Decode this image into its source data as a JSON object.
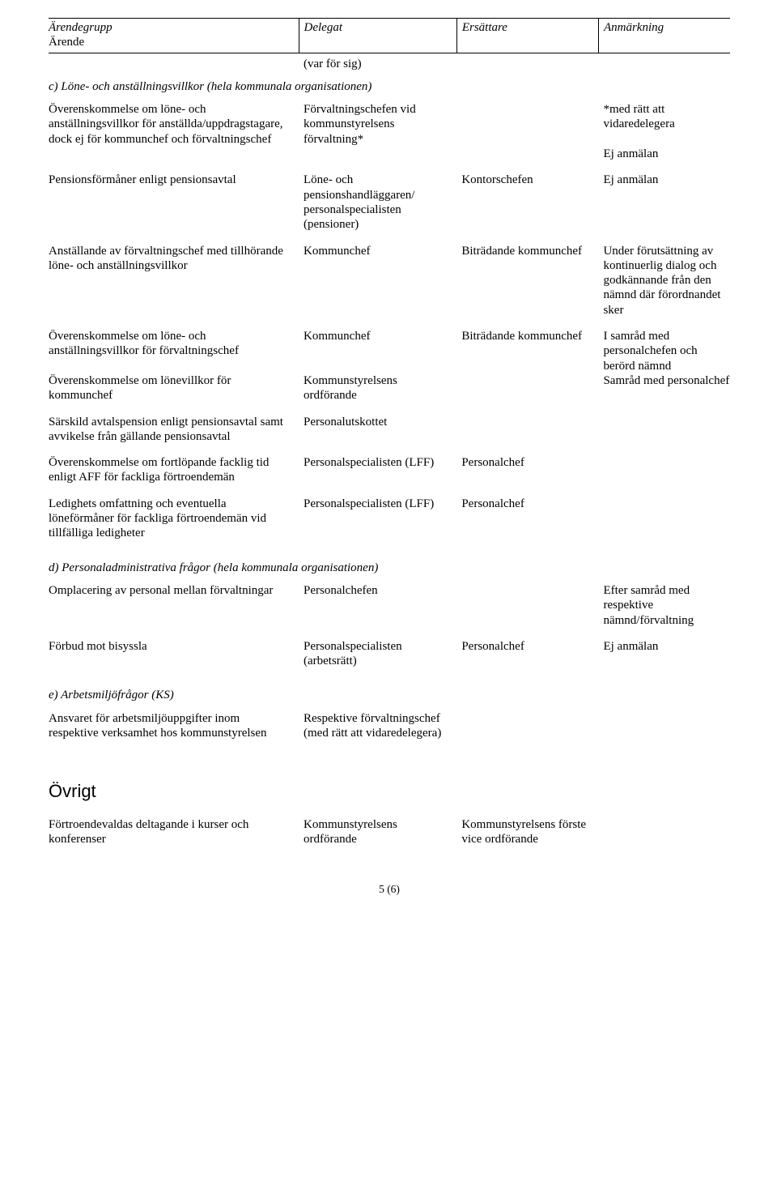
{
  "header": {
    "c0a": "Ärendegrupp",
    "c0b": "Ärende",
    "c1": "Delegat",
    "c2": "Ersättare",
    "c3": "Anmärkning",
    "sub": "(var för sig)"
  },
  "section_c": {
    "title": "c) Löne- och anställningsvillkor (hela kommunala organisationen)",
    "rows": [
      {
        "c0": "Överenskommelse om löne- och anställningsvillkor för anställda/uppdragstagare, dock ej för kommunchef och förvaltningschef",
        "c1": "Förvaltningschefen vid kommunstyrelsens förvaltning*",
        "c2": "",
        "c3": "*med rätt att vidaredelegera\n\nEj anmälan"
      },
      {
        "c0": "Pensionsförmåner enligt pensionsavtal",
        "c1": "Löne- och pensionshandläggaren/ personalspecialisten (pensioner)",
        "c2": "Kontorschefen",
        "c3": "Ej anmälan"
      },
      {
        "c0": "Anställande av förvaltningschef med tillhörande löne- och anställningsvillkor",
        "c1": "Kommunchef",
        "c2": "Biträdande kommunchef",
        "c3": "Under förutsättning av kontinuerlig dialog och godkännande från den nämnd där förordnandet sker"
      },
      {
        "c0": "Överenskommelse om löne- och anställningsvillkor för förvaltningschef",
        "c1": "Kommunchef",
        "c2": "Biträdande kommunchef",
        "c3": "I samråd med personalchefen och berörd nämnd"
      },
      {
        "c0": "Överenskommelse om lönevillkor för kommunchef",
        "c1": "Kommunstyrelsens ordförande",
        "c2": "",
        "c3": "Samråd med personalchef"
      },
      {
        "c0": "Särskild avtalspension enligt pensionsavtal samt avvikelse från gällande pensionsavtal",
        "c1": "Personalutskottet",
        "c2": "",
        "c3": ""
      },
      {
        "c0": "Överenskommelse om fortlöpande facklig tid enligt AFF för fackliga förtroendemän",
        "c1": "Personalspecialisten (LFF)",
        "c2": "Personalchef",
        "c3": ""
      },
      {
        "c0": "Ledighets omfattning och eventuella löneförmåner för fackliga förtroendemän vid tillfälliga ledigheter",
        "c1": "Personalspecialisten (LFF)",
        "c2": "Personalchef",
        "c3": ""
      }
    ]
  },
  "section_d": {
    "title": "d) Personaladministrativa frågor (hela kommunala organisationen)",
    "rows": [
      {
        "c0": "Omplacering av personal mellan förvaltningar",
        "c1": "Personalchefen",
        "c2": "",
        "c3": "Efter samråd med respektive nämnd/förvaltning"
      },
      {
        "c0": "Förbud mot bisyssla",
        "c1": "Personalspecialisten (arbetsrätt)",
        "c2": "Personalchef",
        "c3": "Ej anmälan"
      }
    ]
  },
  "section_e": {
    "title": "e) Arbetsmiljöfrågor (KS)",
    "rows": [
      {
        "c0": "Ansvaret för arbetsmiljöuppgifter inom respektive verksamhet hos kommunstyrelsen",
        "c1": "Respektive förvaltningschef (med rätt att vidaredelegera)",
        "c2": "",
        "c3": ""
      }
    ]
  },
  "ovrigt": {
    "heading": "Övrigt",
    "rows": [
      {
        "c0": "Förtroendevaldas deltagande i kurser och konferenser",
        "c1": "Kommunstyrelsens ordförande",
        "c2": "Kommunstyrelsens förste vice ordförande",
        "c3": ""
      }
    ]
  },
  "pagenum": "5 (6)"
}
